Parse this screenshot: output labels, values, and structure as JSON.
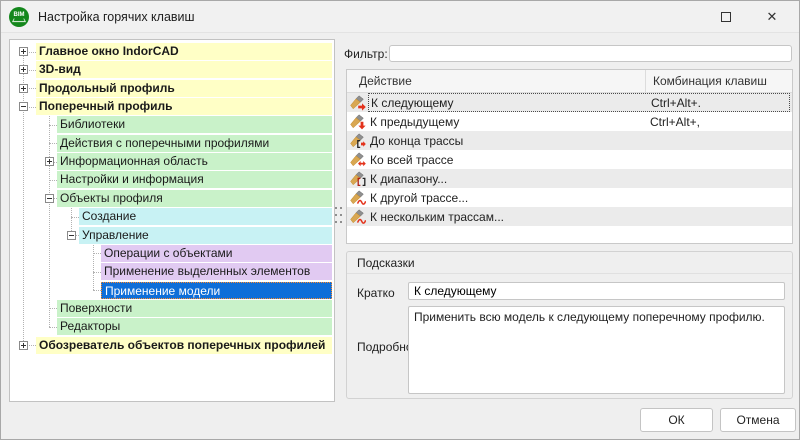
{
  "window": {
    "title": "Настройка горячих клавиш",
    "app_icon_text": "BIM",
    "maximize_glyph": "",
    "close_glyph": "✕"
  },
  "filter": {
    "label": "Фильтр:",
    "value": ""
  },
  "tree": {
    "items": [
      {
        "label": "Главное окно IndorCAD",
        "level": 1,
        "expand": "plus",
        "color": "yellow",
        "bold": true,
        "selected": false
      },
      {
        "label": "3D-вид",
        "level": 1,
        "expand": "plus",
        "color": "yellow",
        "bold": true,
        "selected": false
      },
      {
        "label": "Продольный профиль",
        "level": 1,
        "expand": "plus",
        "color": "yellow",
        "bold": true,
        "selected": false
      },
      {
        "label": "Поперечный профиль",
        "level": 1,
        "expand": "minus",
        "color": "yellow",
        "bold": true,
        "selected": false
      },
      {
        "label": "Библиотеки",
        "level": 2,
        "expand": "none",
        "color": "green",
        "bold": false,
        "selected": false
      },
      {
        "label": "Действия с поперечными профилями",
        "level": 2,
        "expand": "none",
        "color": "green",
        "bold": false,
        "selected": false
      },
      {
        "label": "Информационная область",
        "level": 2,
        "expand": "plus",
        "color": "green",
        "bold": false,
        "selected": false
      },
      {
        "label": "Настройки и информация",
        "level": 2,
        "expand": "none",
        "color": "green",
        "bold": false,
        "selected": false
      },
      {
        "label": "Объекты профиля",
        "level": 2,
        "expand": "minus",
        "color": "green",
        "bold": false,
        "selected": false
      },
      {
        "label": "Создание",
        "level": 3,
        "expand": "none",
        "color": "cyan",
        "bold": false,
        "selected": false
      },
      {
        "label": "Управление",
        "level": 3,
        "expand": "minus",
        "color": "cyan",
        "bold": false,
        "selected": false
      },
      {
        "label": "Операции с объектами",
        "level": 4,
        "expand": "none",
        "color": "purple",
        "bold": false,
        "selected": false
      },
      {
        "label": "Применение выделенных элементов",
        "level": 4,
        "expand": "none",
        "color": "purple",
        "bold": false,
        "selected": false
      },
      {
        "label": "Применение модели",
        "level": 4,
        "expand": "none",
        "color": "purple",
        "bold": false,
        "selected": true
      },
      {
        "label": "Поверхности",
        "level": 2,
        "expand": "none",
        "color": "green",
        "bold": false,
        "selected": false
      },
      {
        "label": "Редакторы",
        "level": 2,
        "expand": "none",
        "color": "green",
        "bold": false,
        "selected": false
      },
      {
        "label": "Обозреватель объектов поперечных профилей",
        "level": 1,
        "expand": "plus",
        "color": "yellow",
        "bold": true,
        "selected": false
      }
    ]
  },
  "table": {
    "columns": [
      "Действие",
      "Комбинация клавиш"
    ],
    "rows": [
      {
        "icon": "brush-next-icon",
        "label": "К следующему",
        "shortcut": "Ctrl+Alt+.",
        "focused": true
      },
      {
        "icon": "brush-prev-icon",
        "label": "К предыдущему",
        "shortcut": "Ctrl+Alt+,",
        "focused": false
      },
      {
        "icon": "brush-to-end-icon",
        "label": "До конца трассы",
        "shortcut": "",
        "focused": false
      },
      {
        "icon": "brush-whole-route-icon",
        "label": "Ко всей трассе",
        "shortcut": "",
        "focused": false
      },
      {
        "icon": "brush-range-icon",
        "label": "К диапазону...",
        "shortcut": "",
        "focused": false
      },
      {
        "icon": "brush-other-route-icon",
        "label": "К другой трассе...",
        "shortcut": "",
        "focused": false
      },
      {
        "icon": "brush-multi-route-icon",
        "label": "К нескольким трассам...",
        "shortcut": "",
        "focused": false
      }
    ]
  },
  "hints": {
    "title": "Подсказки",
    "brief_label": "Кратко",
    "brief_value": "К следующему",
    "detail_label": "Подробно",
    "detail_value": "Применить всю модель к следующему поперечному профилю."
  },
  "footer": {
    "ok_label": "ОК",
    "cancel_label": "Отмена"
  },
  "colors": {
    "selection_blue": "#0f6ed8",
    "focus_orange": "#ff8c28",
    "tree_yellow": "#ffffc6",
    "tree_green": "#c9f2c9",
    "tree_cyan": "#c8f2f4",
    "tree_purple": "#e1caf2",
    "row_stripe": "#ebebeb"
  }
}
